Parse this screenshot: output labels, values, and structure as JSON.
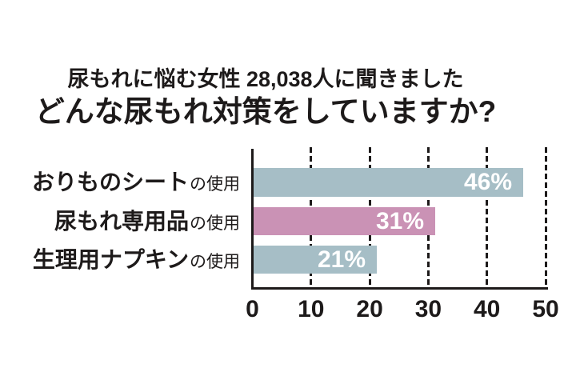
{
  "title": {
    "subtitle": "尿もれに悩む女性 28,038人に聞きました",
    "main": "どんな尿もれ対策をしていますか?"
  },
  "chart_data": {
    "type": "bar",
    "orientation": "horizontal",
    "title": "どんな尿もれ対策をしていますか?",
    "subtitle": "尿もれに悩む女性 28,038人に聞きました",
    "categories": [
      "おりものシートの使用",
      "尿もれ専用品の使用",
      "生理用ナプキンの使用"
    ],
    "category_main": [
      "おりものシート",
      "尿もれ専用品",
      "生理用ナプキン"
    ],
    "category_suffix": "の使用",
    "values": [
      46,
      31,
      21
    ],
    "value_labels": [
      "46%",
      "31%",
      "21%"
    ],
    "bar_colors": [
      "#a6bec6",
      "#ca92b5",
      "#a6bec6"
    ],
    "x_ticks": [
      0,
      10,
      20,
      30,
      40,
      50
    ],
    "xlim": [
      0,
      50
    ],
    "grid": "dashed-vertical-gridlines",
    "legend": "none"
  },
  "colors": {
    "bar_blue_gray": "#a6bec6",
    "bar_pink": "#ca92b5",
    "axis_and_text": "#1d1a1a",
    "value_text": "#ffffff",
    "background": "#ffffff"
  }
}
